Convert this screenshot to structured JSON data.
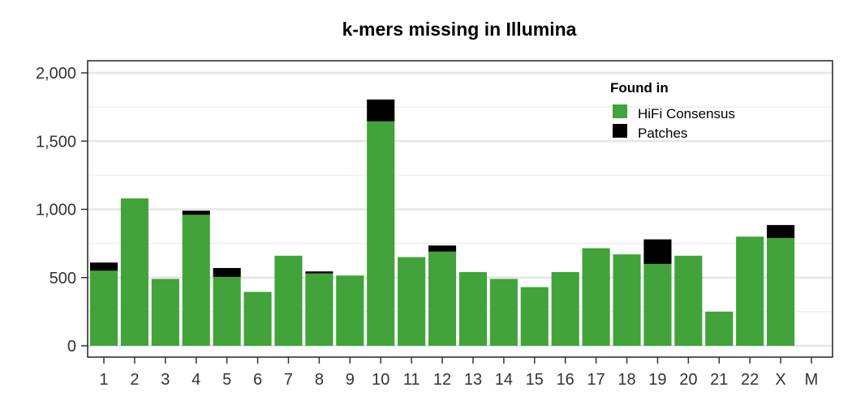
{
  "chart_data": {
    "type": "bar",
    "stacked": true,
    "title": "k-mers missing in Illumina",
    "xlabel": "",
    "ylabel": "",
    "ylim": [
      0,
      2100
    ],
    "yticks": [
      0,
      500,
      1000,
      1500,
      2000
    ],
    "ytick_labels": [
      "0",
      "500",
      "1,000",
      "1,500",
      "2,000"
    ],
    "grid": true,
    "categories": [
      "1",
      "2",
      "3",
      "4",
      "5",
      "6",
      "7",
      "8",
      "9",
      "10",
      "11",
      "12",
      "13",
      "14",
      "15",
      "16",
      "17",
      "18",
      "19",
      "20",
      "21",
      "22",
      "X",
      "M"
    ],
    "series": [
      {
        "name": "HiFi Consensus",
        "color": "#41A33A",
        "values": [
          550,
          1080,
          490,
          960,
          505,
          395,
          660,
          530,
          515,
          1645,
          650,
          690,
          540,
          490,
          430,
          540,
          715,
          670,
          600,
          660,
          250,
          800,
          790,
          0
        ]
      },
      {
        "name": "Patches",
        "color": "#000000",
        "values": [
          60,
          0,
          0,
          30,
          65,
          0,
          0,
          15,
          0,
          160,
          0,
          45,
          0,
          0,
          0,
          0,
          0,
          0,
          180,
          0,
          0,
          0,
          95,
          0
        ]
      }
    ],
    "legend": {
      "title": "Found in",
      "position": "top-right-inside"
    }
  }
}
